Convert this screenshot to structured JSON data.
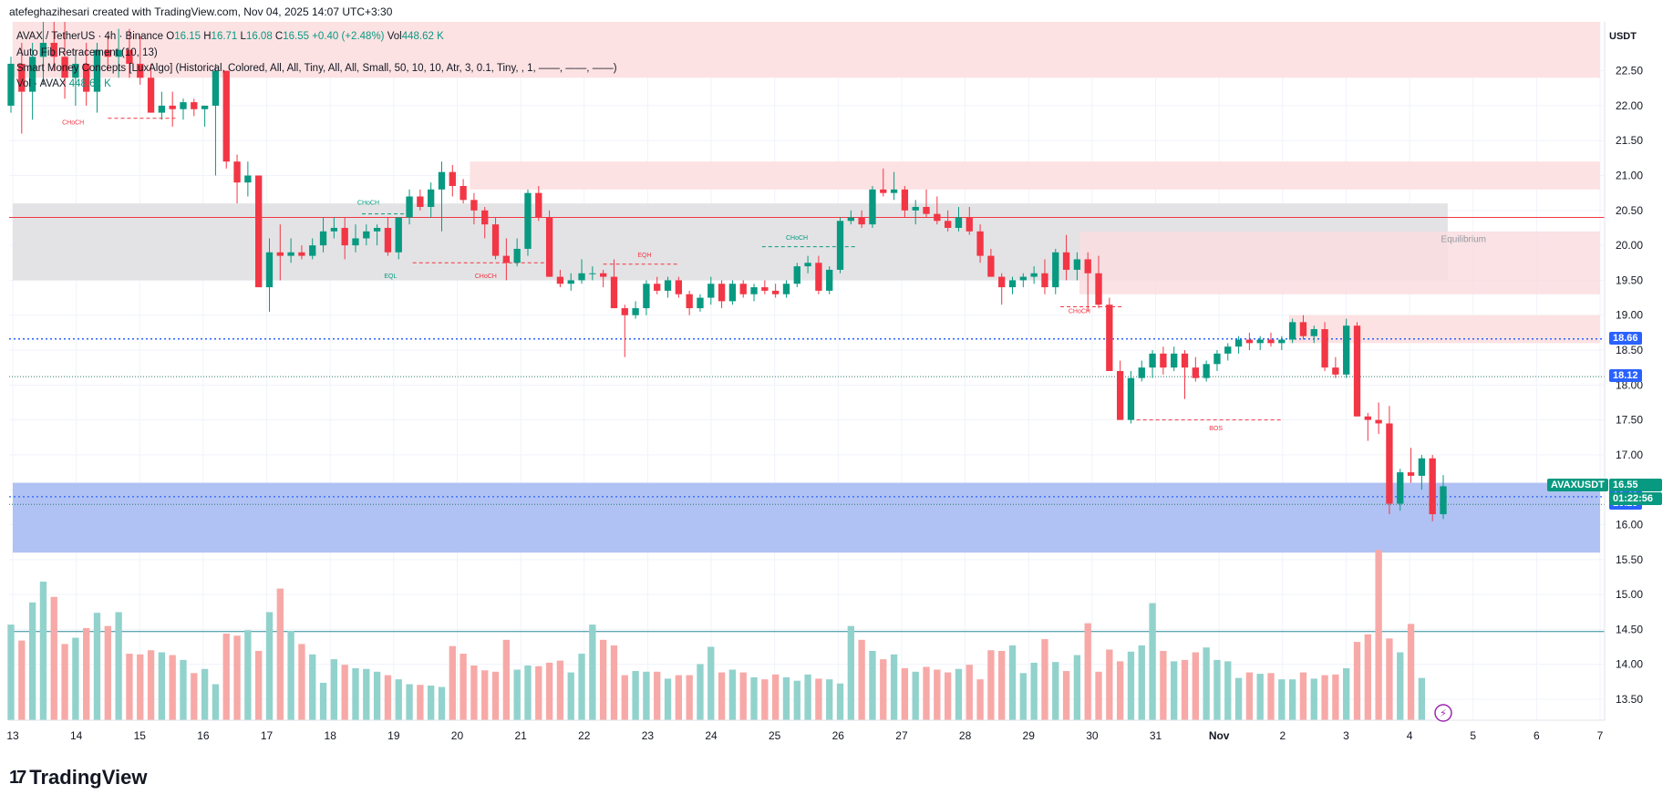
{
  "caption": "atefeghazihesari created with TradingView.com, Nov 04, 2025 14:07 UTC+3:30",
  "legend": {
    "symbol_line": "AVAX / TetherUS · 4h · Binance",
    "o_label": "O",
    "o_value": "16.15",
    "h_label": "H",
    "h_value": "16.71",
    "l_label": "L",
    "l_value": "16.08",
    "c_label": "C",
    "c_value": "16.55",
    "change": "+0.40 (+2.48%)",
    "vol_label": "Vol",
    "vol_value": "448.62 K",
    "indicator1": "Auto Fib Retracement (10, 13)",
    "indicator2": "Smart Money Concepts [LuxAlgo] (Historical, Colored, All, All, Tiny, All, All, Small, 50, 10, 10, Atr, 3, 0.1, Tiny, , 1, ——, ——, ——)",
    "indicator3_label": "Vol · AVAX",
    "indicator3_value": "448.62 K"
  },
  "currency": "USDT",
  "brand": "TradingView",
  "colors": {
    "up": "#089981",
    "down": "#f23645",
    "up_vol": "#92d2cc",
    "down_vol": "#f7a9a7",
    "blue_line": "#2962ff",
    "red_line": "#f23645"
  },
  "price_tags": [
    {
      "value": "18.66",
      "color": "#2962ff"
    },
    {
      "value": "18.12",
      "color": "#2962ff"
    },
    {
      "value": "16.40",
      "color": "#2962ff"
    },
    {
      "value": "16.29",
      "color": "#2962ff"
    }
  ],
  "last_price": {
    "symbol": "AVAXUSDT",
    "price": "16.55",
    "countdown": "01:22:56",
    "color": "#089981"
  },
  "annotations": [
    {
      "text": "CHoCH",
      "x": 13.95,
      "y": 21.73,
      "color": "#f23645"
    },
    {
      "text": "CHoCH",
      "x": 18.6,
      "y": 20.58,
      "color": "#089981"
    },
    {
      "text": "EQL",
      "x": 18.95,
      "y": 19.53,
      "color": "#089981"
    },
    {
      "text": "CHoCH",
      "x": 20.45,
      "y": 19.53,
      "color": "#f23645"
    },
    {
      "text": "EQH",
      "x": 22.95,
      "y": 19.83,
      "color": "#f23645"
    },
    {
      "text": "CHoCH",
      "x": 25.35,
      "y": 20.08,
      "color": "#089981"
    },
    {
      "text": "CHoCH",
      "x": 29.8,
      "y": 19.03,
      "color": "#f23645"
    },
    {
      "text": "BOS",
      "x": 31.95,
      "y": 17.35,
      "color": "#f23645"
    },
    {
      "text": "Equilibrium",
      "x": 35.85,
      "y": 20.05,
      "color": "#9598a1"
    }
  ],
  "chart_data": {
    "type": "candlestick",
    "title": "AVAX / TetherUS · 4h · Binance",
    "interval": "4h",
    "x_ticks": [
      "13",
      "14",
      "15",
      "16",
      "17",
      "18",
      "19",
      "20",
      "21",
      "22",
      "23",
      "24",
      "25",
      "26",
      "27",
      "28",
      "29",
      "30",
      "31",
      "Nov",
      "2",
      "3",
      "4",
      "5",
      "6",
      "7"
    ],
    "x_start": 13,
    "x_end": 38,
    "y_ticks": [
      "22.50",
      "22.00",
      "21.50",
      "21.00",
      "20.50",
      "20.00",
      "19.50",
      "19.00",
      "18.50",
      "18.00",
      "17.50",
      "17.00",
      "16.50",
      "16.00",
      "15.50",
      "15.00",
      "14.50",
      "14.00",
      "13.50"
    ],
    "ylim": [
      13.2,
      23.2
    ],
    "grid": true,
    "candles": [
      {
        "o": 22.0,
        "h": 22.7,
        "l": 21.9,
        "c": 22.6
      },
      {
        "o": 22.6,
        "h": 22.9,
        "l": 21.6,
        "c": 22.2
      },
      {
        "o": 22.2,
        "h": 22.9,
        "l": 21.8,
        "c": 22.7
      },
      {
        "o": 22.7,
        "h": 23.2,
        "l": 22.3,
        "c": 22.9
      },
      {
        "o": 22.9,
        "h": 23.2,
        "l": 22.5,
        "c": 22.7
      },
      {
        "o": 22.7,
        "h": 23.2,
        "l": 22.1,
        "c": 22.4
      },
      {
        "o": 22.4,
        "h": 22.8,
        "l": 22.0,
        "c": 22.6
      },
      {
        "o": 22.6,
        "h": 22.9,
        "l": 22.0,
        "c": 22.2
      },
      {
        "o": 22.2,
        "h": 22.9,
        "l": 21.9,
        "c": 22.8
      },
      {
        "o": 22.8,
        "h": 23.0,
        "l": 22.5,
        "c": 22.7
      },
      {
        "o": 22.7,
        "h": 23.1,
        "l": 22.4,
        "c": 22.8
      },
      {
        "o": 22.8,
        "h": 23.1,
        "l": 22.4,
        "c": 22.6
      },
      {
        "o": 22.6,
        "h": 23.0,
        "l": 22.3,
        "c": 22.4
      },
      {
        "o": 22.4,
        "h": 22.6,
        "l": 21.9,
        "c": 21.9
      },
      {
        "o": 21.9,
        "h": 22.2,
        "l": 21.8,
        "c": 22.0
      },
      {
        "o": 22.0,
        "h": 22.2,
        "l": 21.7,
        "c": 21.95
      },
      {
        "o": 21.95,
        "h": 22.1,
        "l": 21.8,
        "c": 22.05
      },
      {
        "o": 22.05,
        "h": 22.1,
        "l": 21.85,
        "c": 21.95
      },
      {
        "o": 21.95,
        "h": 22.0,
        "l": 21.7,
        "c": 22.0
      },
      {
        "o": 22.0,
        "h": 22.6,
        "l": 21.0,
        "c": 22.5
      },
      {
        "o": 22.5,
        "h": 22.5,
        "l": 21.1,
        "c": 21.2
      },
      {
        "o": 21.2,
        "h": 21.3,
        "l": 20.6,
        "c": 20.9
      },
      {
        "o": 20.9,
        "h": 21.2,
        "l": 20.7,
        "c": 21.0
      },
      {
        "o": 21.0,
        "h": 21.0,
        "l": 19.4,
        "c": 19.4
      },
      {
        "o": 19.4,
        "h": 20.1,
        "l": 19.05,
        "c": 19.9
      },
      {
        "o": 19.9,
        "h": 20.3,
        "l": 19.5,
        "c": 19.85
      },
      {
        "o": 19.85,
        "h": 20.1,
        "l": 19.75,
        "c": 19.9
      },
      {
        "o": 19.9,
        "h": 20.0,
        "l": 19.8,
        "c": 19.85
      },
      {
        "o": 19.85,
        "h": 20.1,
        "l": 19.8,
        "c": 20.0
      },
      {
        "o": 20.0,
        "h": 20.4,
        "l": 19.9,
        "c": 20.2
      },
      {
        "o": 20.2,
        "h": 20.4,
        "l": 20.1,
        "c": 20.25
      },
      {
        "o": 20.25,
        "h": 20.4,
        "l": 19.8,
        "c": 20.0
      },
      {
        "o": 20.0,
        "h": 20.3,
        "l": 19.9,
        "c": 20.1
      },
      {
        "o": 20.1,
        "h": 20.3,
        "l": 20.0,
        "c": 20.2
      },
      {
        "o": 20.2,
        "h": 20.3,
        "l": 20.0,
        "c": 20.25
      },
      {
        "o": 20.25,
        "h": 20.4,
        "l": 19.85,
        "c": 19.9
      },
      {
        "o": 19.9,
        "h": 20.4,
        "l": 19.8,
        "c": 20.4
      },
      {
        "o": 20.4,
        "h": 20.8,
        "l": 20.3,
        "c": 20.7
      },
      {
        "o": 20.7,
        "h": 20.8,
        "l": 20.5,
        "c": 20.55
      },
      {
        "o": 20.55,
        "h": 20.9,
        "l": 20.4,
        "c": 20.8
      },
      {
        "o": 20.8,
        "h": 21.2,
        "l": 20.2,
        "c": 21.05
      },
      {
        "o": 21.05,
        "h": 21.15,
        "l": 20.7,
        "c": 20.85
      },
      {
        "o": 20.85,
        "h": 20.95,
        "l": 20.6,
        "c": 20.65
      },
      {
        "o": 20.65,
        "h": 20.75,
        "l": 20.3,
        "c": 20.5
      },
      {
        "o": 20.5,
        "h": 20.55,
        "l": 20.1,
        "c": 20.3
      },
      {
        "o": 20.3,
        "h": 20.4,
        "l": 19.8,
        "c": 19.85
      },
      {
        "o": 19.85,
        "h": 20.1,
        "l": 19.5,
        "c": 19.75
      },
      {
        "o": 19.75,
        "h": 20.1,
        "l": 19.7,
        "c": 19.95
      },
      {
        "o": 19.95,
        "h": 20.8,
        "l": 19.85,
        "c": 20.75
      },
      {
        "o": 20.75,
        "h": 20.85,
        "l": 20.35,
        "c": 20.4
      },
      {
        "o": 20.4,
        "h": 20.5,
        "l": 19.55,
        "c": 19.55
      },
      {
        "o": 19.55,
        "h": 19.65,
        "l": 19.4,
        "c": 19.45
      },
      {
        "o": 19.45,
        "h": 19.6,
        "l": 19.35,
        "c": 19.5
      },
      {
        "o": 19.5,
        "h": 19.8,
        "l": 19.45,
        "c": 19.6
      },
      {
        "o": 19.6,
        "h": 19.7,
        "l": 19.5,
        "c": 19.6
      },
      {
        "o": 19.6,
        "h": 19.65,
        "l": 19.4,
        "c": 19.55
      },
      {
        "o": 19.55,
        "h": 19.8,
        "l": 19.1,
        "c": 19.1
      },
      {
        "o": 19.1,
        "h": 19.15,
        "l": 18.4,
        "c": 19.0
      },
      {
        "o": 19.0,
        "h": 19.2,
        "l": 18.95,
        "c": 19.1
      },
      {
        "o": 19.1,
        "h": 19.5,
        "l": 19.0,
        "c": 19.45
      },
      {
        "o": 19.45,
        "h": 19.55,
        "l": 19.3,
        "c": 19.35
      },
      {
        "o": 19.35,
        "h": 19.55,
        "l": 19.25,
        "c": 19.5
      },
      {
        "o": 19.5,
        "h": 19.55,
        "l": 19.25,
        "c": 19.3
      },
      {
        "o": 19.3,
        "h": 19.35,
        "l": 19.0,
        "c": 19.1
      },
      {
        "o": 19.1,
        "h": 19.3,
        "l": 19.05,
        "c": 19.25
      },
      {
        "o": 19.25,
        "h": 19.55,
        "l": 19.15,
        "c": 19.45
      },
      {
        "o": 19.45,
        "h": 19.5,
        "l": 19.1,
        "c": 19.2
      },
      {
        "o": 19.2,
        "h": 19.5,
        "l": 19.15,
        "c": 19.45
      },
      {
        "o": 19.45,
        "h": 19.5,
        "l": 19.25,
        "c": 19.3
      },
      {
        "o": 19.3,
        "h": 19.45,
        "l": 19.2,
        "c": 19.4
      },
      {
        "o": 19.4,
        "h": 19.5,
        "l": 19.3,
        "c": 19.35
      },
      {
        "o": 19.35,
        "h": 19.45,
        "l": 19.25,
        "c": 19.3
      },
      {
        "o": 19.3,
        "h": 19.5,
        "l": 19.25,
        "c": 19.45
      },
      {
        "o": 19.45,
        "h": 19.75,
        "l": 19.4,
        "c": 19.7
      },
      {
        "o": 19.7,
        "h": 19.85,
        "l": 19.6,
        "c": 19.75
      },
      {
        "o": 19.75,
        "h": 19.85,
        "l": 19.3,
        "c": 19.35
      },
      {
        "o": 19.35,
        "h": 19.7,
        "l": 19.3,
        "c": 19.65
      },
      {
        "o": 19.65,
        "h": 20.4,
        "l": 19.6,
        "c": 20.35
      },
      {
        "o": 20.35,
        "h": 20.5,
        "l": 20.3,
        "c": 20.4
      },
      {
        "o": 20.4,
        "h": 20.5,
        "l": 20.25,
        "c": 20.3
      },
      {
        "o": 20.3,
        "h": 20.85,
        "l": 20.25,
        "c": 20.8
      },
      {
        "o": 20.8,
        "h": 21.1,
        "l": 20.7,
        "c": 20.75
      },
      {
        "o": 20.75,
        "h": 21.05,
        "l": 20.65,
        "c": 20.8
      },
      {
        "o": 20.8,
        "h": 20.85,
        "l": 20.4,
        "c": 20.5
      },
      {
        "o": 20.5,
        "h": 20.65,
        "l": 20.3,
        "c": 20.55
      },
      {
        "o": 20.55,
        "h": 20.8,
        "l": 20.4,
        "c": 20.45
      },
      {
        "o": 20.45,
        "h": 20.7,
        "l": 20.3,
        "c": 20.35
      },
      {
        "o": 20.35,
        "h": 20.5,
        "l": 20.2,
        "c": 20.25
      },
      {
        "o": 20.25,
        "h": 20.55,
        "l": 20.2,
        "c": 20.4
      },
      {
        "o": 20.4,
        "h": 20.55,
        "l": 20.15,
        "c": 20.2
      },
      {
        "o": 20.2,
        "h": 20.3,
        "l": 19.75,
        "c": 19.85
      },
      {
        "o": 19.85,
        "h": 19.95,
        "l": 19.55,
        "c": 19.55
      },
      {
        "o": 19.55,
        "h": 19.6,
        "l": 19.15,
        "c": 19.4
      },
      {
        "o": 19.4,
        "h": 19.55,
        "l": 19.3,
        "c": 19.5
      },
      {
        "o": 19.5,
        "h": 19.6,
        "l": 19.4,
        "c": 19.55
      },
      {
        "o": 19.55,
        "h": 19.7,
        "l": 19.45,
        "c": 19.6
      },
      {
        "o": 19.6,
        "h": 19.8,
        "l": 19.3,
        "c": 19.4
      },
      {
        "o": 19.4,
        "h": 19.95,
        "l": 19.3,
        "c": 19.9
      },
      {
        "o": 19.9,
        "h": 20.15,
        "l": 19.5,
        "c": 19.65
      },
      {
        "o": 19.65,
        "h": 19.9,
        "l": 19.5,
        "c": 19.8
      },
      {
        "o": 19.8,
        "h": 19.9,
        "l": 19.05,
        "c": 19.6
      },
      {
        "o": 19.6,
        "h": 19.85,
        "l": 19.1,
        "c": 19.15
      },
      {
        "o": 19.15,
        "h": 19.25,
        "l": 18.2,
        "c": 18.2
      },
      {
        "o": 18.2,
        "h": 18.35,
        "l": 17.5,
        "c": 17.5
      },
      {
        "o": 17.5,
        "h": 18.2,
        "l": 17.45,
        "c": 18.1
      },
      {
        "o": 18.1,
        "h": 18.35,
        "l": 18.05,
        "c": 18.25
      },
      {
        "o": 18.25,
        "h": 18.5,
        "l": 18.1,
        "c": 18.45
      },
      {
        "o": 18.45,
        "h": 18.55,
        "l": 18.15,
        "c": 18.25
      },
      {
        "o": 18.25,
        "h": 18.55,
        "l": 18.2,
        "c": 18.45
      },
      {
        "o": 18.45,
        "h": 18.5,
        "l": 17.8,
        "c": 18.25
      },
      {
        "o": 18.25,
        "h": 18.4,
        "l": 18.05,
        "c": 18.1
      },
      {
        "o": 18.1,
        "h": 18.35,
        "l": 18.05,
        "c": 18.3
      },
      {
        "o": 18.3,
        "h": 18.5,
        "l": 18.2,
        "c": 18.45
      },
      {
        "o": 18.45,
        "h": 18.6,
        "l": 18.35,
        "c": 18.55
      },
      {
        "o": 18.55,
        "h": 18.7,
        "l": 18.45,
        "c": 18.65
      },
      {
        "o": 18.65,
        "h": 18.75,
        "l": 18.5,
        "c": 18.6
      },
      {
        "o": 18.6,
        "h": 18.7,
        "l": 18.5,
        "c": 18.65
      },
      {
        "o": 18.65,
        "h": 18.75,
        "l": 18.55,
        "c": 18.6
      },
      {
        "o": 18.6,
        "h": 18.7,
        "l": 18.5,
        "c": 18.65
      },
      {
        "o": 18.65,
        "h": 18.95,
        "l": 18.6,
        "c": 18.9
      },
      {
        "o": 18.9,
        "h": 19.0,
        "l": 18.65,
        "c": 18.7
      },
      {
        "o": 18.7,
        "h": 18.85,
        "l": 18.6,
        "c": 18.8
      },
      {
        "o": 18.8,
        "h": 18.9,
        "l": 18.2,
        "c": 18.25
      },
      {
        "o": 18.25,
        "h": 18.4,
        "l": 18.1,
        "c": 18.15
      },
      {
        "o": 18.15,
        "h": 18.95,
        "l": 18.1,
        "c": 18.85
      },
      {
        "o": 18.85,
        "h": 18.9,
        "l": 17.55,
        "c": 17.55
      },
      {
        "o": 17.55,
        "h": 17.6,
        "l": 17.2,
        "c": 17.5
      },
      {
        "o": 17.5,
        "h": 17.75,
        "l": 17.3,
        "c": 17.45
      },
      {
        "o": 17.45,
        "h": 17.7,
        "l": 16.15,
        "c": 16.3
      },
      {
        "o": 16.3,
        "h": 16.8,
        "l": 16.2,
        "c": 16.75
      },
      {
        "o": 16.75,
        "h": 17.1,
        "l": 16.6,
        "c": 16.7
      },
      {
        "o": 16.7,
        "h": 17.0,
        "l": 16.5,
        "c": 16.95
      },
      {
        "o": 16.95,
        "h": 17.0,
        "l": 16.05,
        "c": 16.15
      },
      {
        "o": 16.15,
        "h": 16.71,
        "l": 16.08,
        "c": 16.55
      }
    ],
    "volume_ylim": [
      0,
      2500
    ],
    "volume": [
      1380,
      1150,
      1700,
      2000,
      1780,
      1100,
      1190,
      1330,
      1550,
      1360,
      1560,
      960,
      950,
      1010,
      980,
      940,
      870,
      680,
      740,
      520,
      1250,
      1220,
      1300,
      1000,
      1560,
      1900,
      1290,
      1100,
      950,
      540,
      880,
      800,
      750,
      740,
      700,
      650,
      590,
      520,
      510,
      500,
      480,
      1070,
      960,
      790,
      720,
      700,
      1160,
      730,
      790,
      780,
      830,
      860,
      690,
      960,
      1380,
      1160,
      1080,
      650,
      710,
      700,
      700,
      600,
      650,
      650,
      810,
      1060,
      690,
      730,
      690,
      620,
      590,
      660,
      620,
      570,
      660,
      600,
      590,
      530,
      1360,
      1160,
      1000,
      880,
      950,
      750,
      700,
      770,
      730,
      690,
      740,
      800,
      590,
      1010,
      1000,
      1080,
      680,
      830,
      1170,
      840,
      710,
      940,
      1400,
      700,
      1020,
      850,
      990,
      1080,
      1690,
      1000,
      850,
      870,
      980,
      1050,
      870,
      850,
      610,
      690,
      670,
      680,
      590,
      590,
      690,
      600,
      650,
      660,
      750,
      1130,
      1240,
      2460,
      1180,
      980,
      1390,
      610
    ]
  }
}
